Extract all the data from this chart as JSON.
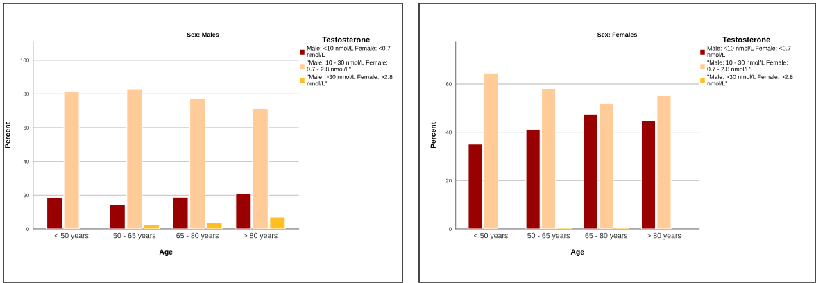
{
  "chart_data": [
    {
      "type": "bar",
      "title": "Sex: Males",
      "xlabel": "Age",
      "ylabel": "Percent",
      "legend_title": "Testosterone",
      "categories": [
        "< 50 years",
        "50 - 65 years",
        "65 - 80 years",
        "> 80 years"
      ],
      "series": [
        {
          "name": "Male: <10 nmol/L Female: <0.7\nnmol/L",
          "color": "#990000",
          "values": [
            18.5,
            14.2,
            18.8,
            21.2
          ]
        },
        {
          "name": "\"Male: 10 - 30 nmol/L Female:\n0.7 - 2.8 nmol/L\"",
          "color": "#ffcc99",
          "values": [
            81.2,
            82.7,
            77.1,
            71.4
          ]
        },
        {
          "name": "\"Male: >30 nmol/L Female: >2.8\nnmol/L\"",
          "color": "#ffbe22",
          "values": [
            null,
            2.7,
            3.7,
            7.0
          ]
        }
      ],
      "ylim": [
        0,
        111
      ],
      "yticks": [
        0,
        20,
        40,
        60,
        80,
        100
      ],
      "grid": "y",
      "legend": "top right"
    },
    {
      "type": "bar",
      "title": "Sex: Females",
      "xlabel": "Age",
      "ylabel": "Percent",
      "legend_title": "Testosterone",
      "categories": [
        "< 50 years",
        "50 - 65 years",
        "65 - 80 years",
        "> 80 years"
      ],
      "series": [
        {
          "name": "Male: <10 nmol/L Female: <0.7\nnmol/L",
          "color": "#990000",
          "values": [
            35.1,
            41.1,
            47.3,
            44.7
          ]
        },
        {
          "name": "\"Male: 10 - 30 nmol/L Female:\n0.7 - 2.8 nmol/L\"",
          "color": "#ffcc99",
          "values": [
            64.5,
            58.0,
            51.9,
            55.0
          ]
        },
        {
          "name": "\"Male: >30 nmol/L Female: >2.8\nnmol/L\"",
          "color": "#ffbe22",
          "values": [
            null,
            0.6,
            0.6,
            null
          ]
        }
      ],
      "ylim": [
        0,
        77.5
      ],
      "yticks": [
        0,
        20,
        40,
        60
      ],
      "grid": "y",
      "legend": "top right"
    }
  ]
}
